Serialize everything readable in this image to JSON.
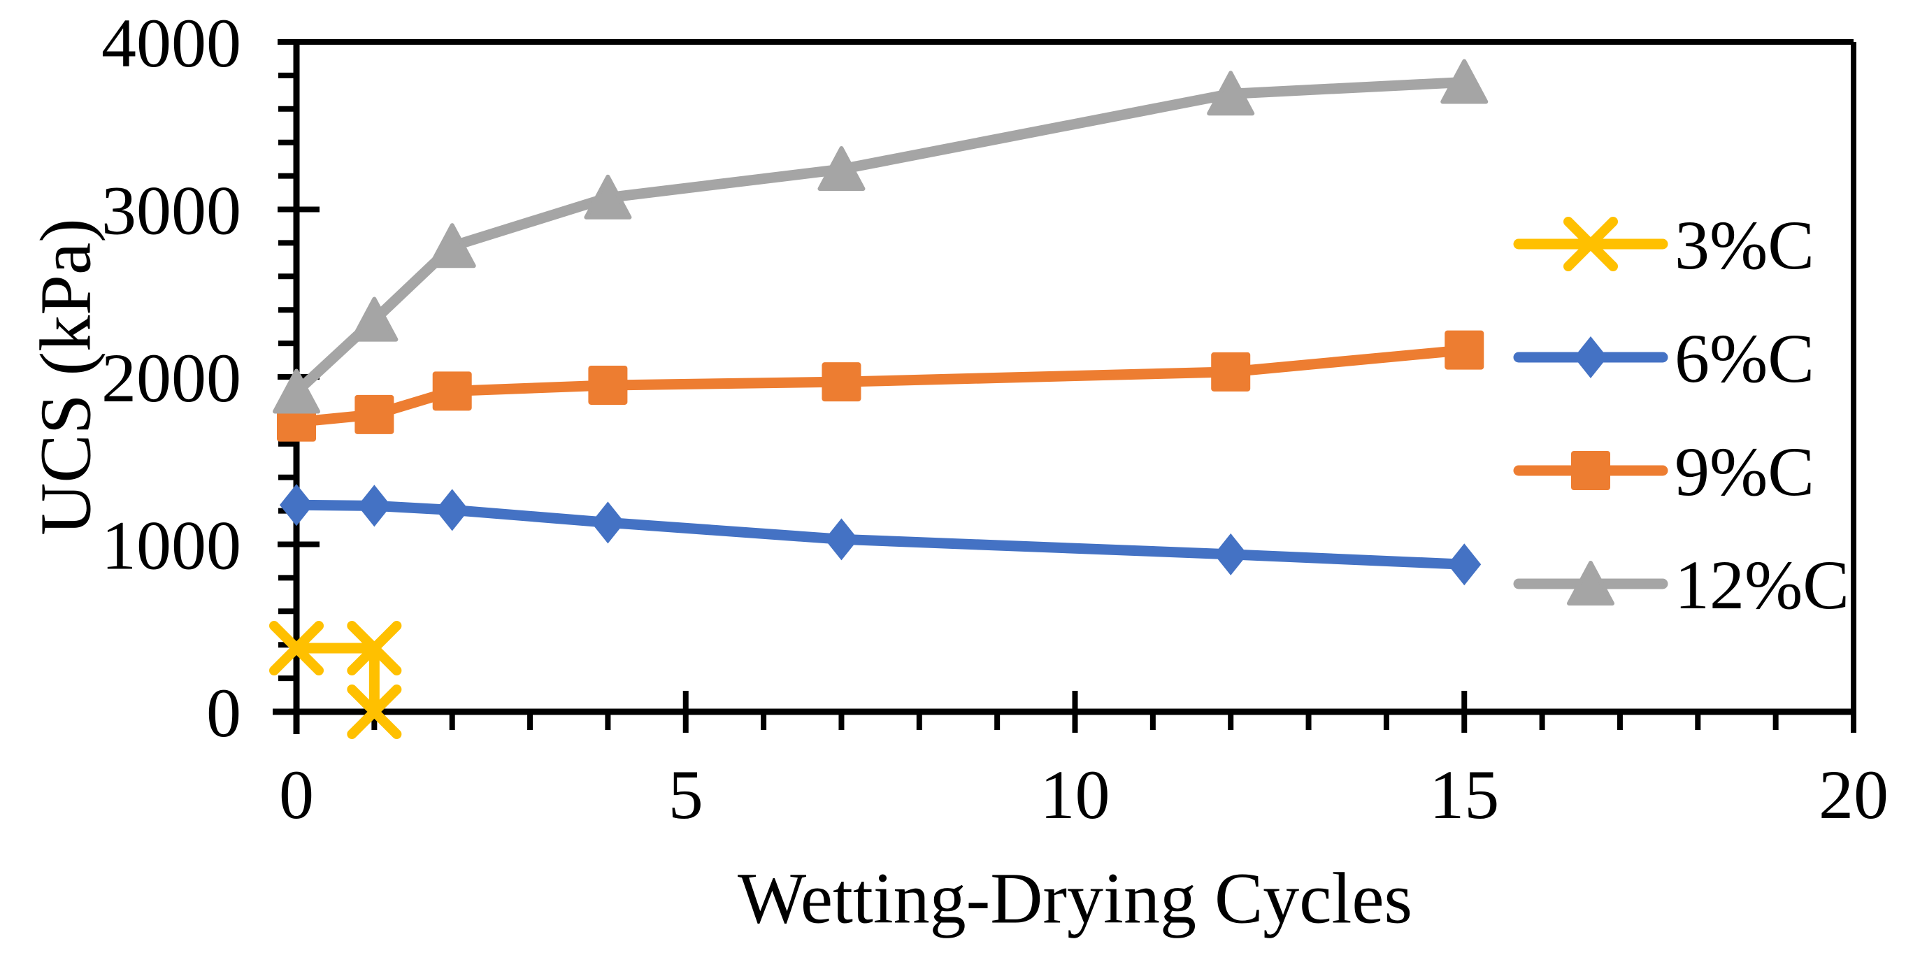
{
  "figure": {
    "background": "#ffffff",
    "axis_color": "#000000",
    "text_color": "#000000"
  },
  "chart_data": {
    "type": "line",
    "title": "",
    "xlabel": "Wetting-Drying Cycles",
    "ylabel": "UCS (kPa)",
    "xlim": [
      0,
      20
    ],
    "ylim": [
      0,
      4000
    ],
    "x_major_ticks": [
      0,
      5,
      10,
      15,
      20
    ],
    "x_tick_labels": [
      "0",
      "5",
      "10",
      "15",
      "20"
    ],
    "x_minor_step": 1,
    "y_major_ticks": [
      0,
      1000,
      2000,
      3000,
      4000
    ],
    "y_tick_labels": [
      "0",
      "1000",
      "2000",
      "3000",
      "4000"
    ],
    "y_minor_step": 200,
    "grid": false,
    "legend_position": "inside-right",
    "legend": [
      "3%C",
      "6%C",
      "9%C",
      "12%C"
    ],
    "series": [
      {
        "name": "3%C",
        "color": "#FFC000",
        "marker": "x",
        "points": [
          [
            0,
            380
          ],
          [
            1,
            380
          ],
          [
            1,
            0
          ]
        ]
      },
      {
        "name": "6%C",
        "color": "#4472C4",
        "marker": "diamond",
        "points": [
          [
            0,
            1235
          ],
          [
            1,
            1230
          ],
          [
            2,
            1205
          ],
          [
            4,
            1130
          ],
          [
            7,
            1030
          ],
          [
            12,
            940
          ],
          [
            15,
            880
          ]
        ]
      },
      {
        "name": "9%C",
        "color": "#ED7D31",
        "marker": "square",
        "points": [
          [
            0,
            1730
          ],
          [
            1,
            1775
          ],
          [
            2,
            1915
          ],
          [
            4,
            1950
          ],
          [
            7,
            1970
          ],
          [
            12,
            2030
          ],
          [
            15,
            2160
          ]
        ]
      },
      {
        "name": "12%C",
        "color": "#A5A5A5",
        "marker": "triangle",
        "points": [
          [
            0,
            1910
          ],
          [
            1,
            2340
          ],
          [
            2,
            2780
          ],
          [
            4,
            3070
          ],
          [
            7,
            3240
          ],
          [
            12,
            3690
          ],
          [
            15,
            3760
          ]
        ]
      }
    ]
  }
}
